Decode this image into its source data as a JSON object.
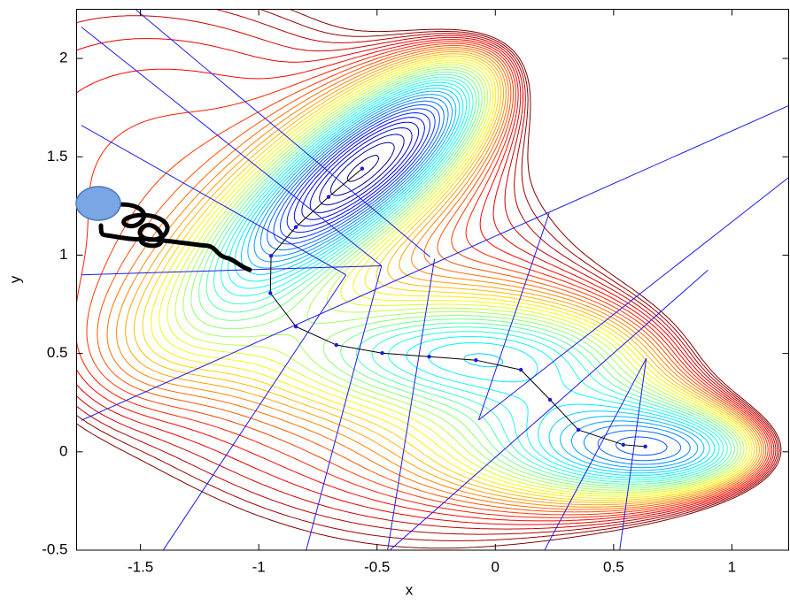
{
  "chart_data": {
    "type": "contour",
    "x_label": "x",
    "y_label": "y",
    "xlim": [
      -1.77,
      1.24
    ],
    "ylim": [
      -0.5,
      2.25
    ],
    "xticks": [
      -1.5,
      -1,
      -0.5,
      0,
      0.5,
      1
    ],
    "yticks": [
      -0.5,
      0,
      0.5,
      1,
      1.5,
      2
    ],
    "path": {
      "color": "#000000",
      "marker_color": "#1a1adf",
      "x": [
        -0.563,
        -0.705,
        -0.843,
        -0.948,
        -0.951,
        -0.843,
        -0.672,
        -0.478,
        -0.28,
        -0.082,
        0.108,
        0.231,
        0.351,
        0.541,
        0.634
      ],
      "y": [
        1.44,
        1.296,
        1.143,
        0.996,
        0.807,
        0.637,
        0.543,
        0.502,
        0.484,
        0.466,
        0.417,
        0.265,
        0.112,
        0.036,
        0.027
      ]
    },
    "lines": {
      "color": "#1c1ce6",
      "items": [
        {
          "x": [
            -1.519,
            -0.276
          ],
          "y": [
            2.247,
            0.991
          ]
        },
        {
          "x": [
            -1.75,
            -0.481
          ],
          "y": [
            2.16,
            0.946
          ]
        },
        {
          "x": [
            -1.75,
            -0.631
          ],
          "y": [
            1.66,
            0.9
          ]
        },
        {
          "x": [
            -1.75,
            -0.481
          ],
          "y": [
            0.9,
            0.946
          ]
        },
        {
          "x": [
            -1.75,
            1.24
          ],
          "y": [
            0.16,
            1.76
          ]
        },
        {
          "x": [
            0.228,
            -0.071
          ],
          "y": [
            1.215,
            0.161
          ]
        },
        {
          "x": [
            -0.631,
            -1.403
          ],
          "y": [
            0.9,
            -0.498
          ]
        },
        {
          "x": [
            -0.481,
            -0.799
          ],
          "y": [
            0.946,
            -0.498
          ]
        },
        {
          "x": [
            -0.257,
            -0.455
          ],
          "y": [
            0.982,
            -0.498
          ]
        },
        {
          "x": [
            -0.444,
            0.899
          ],
          "y": [
            -0.498,
            0.924
          ]
        },
        {
          "x": [
            -0.071,
            1.24
          ],
          "y": [
            0.161,
            1.395
          ]
        },
        {
          "x": [
            0.209,
            0.638
          ],
          "y": [
            -0.498,
            0.475
          ]
        },
        {
          "x": [
            0.526,
            0.638
          ],
          "y": [
            -0.498,
            0.475
          ]
        }
      ]
    }
  }
}
